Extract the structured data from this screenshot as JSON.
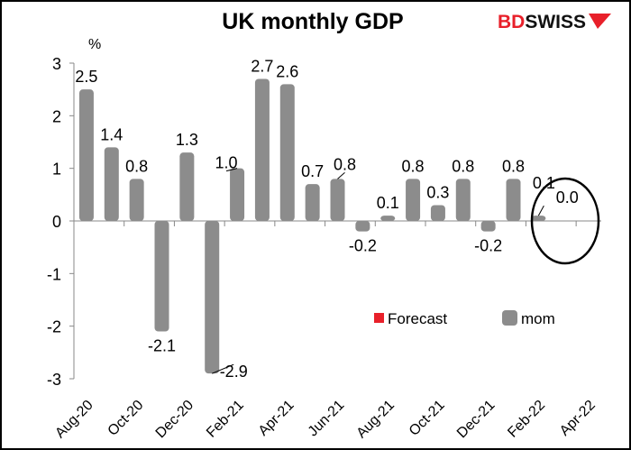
{
  "chart_data": {
    "type": "bar",
    "title": "UK monthly GDP",
    "ylabel": "%",
    "ylim": [
      -3,
      3
    ],
    "yticks": [
      -3,
      -2,
      -1,
      0,
      1,
      2,
      3
    ],
    "categories": [
      "Aug-20",
      "Sep-20",
      "Oct-20",
      "Nov-20",
      "Dec-20",
      "Jan-21",
      "Feb-21",
      "Mar-21",
      "Apr-21",
      "May-21",
      "Jun-21",
      "Jul-21",
      "Aug-21",
      "Sep-21",
      "Oct-21",
      "Nov-21",
      "Dec-21",
      "Jan-22",
      "Feb-22",
      "Mar-22",
      "Apr-22"
    ],
    "xtick_labels": [
      "Aug-20",
      "Oct-20",
      "Dec-20",
      "Feb-21",
      "Apr-21",
      "Jun-21",
      "Aug-21",
      "Oct-21",
      "Dec-21",
      "Feb-22",
      "Apr-22"
    ],
    "series": [
      {
        "name": "mom",
        "color": "#8c8c8c",
        "values": [
          2.5,
          1.4,
          0.8,
          -2.1,
          1.3,
          -2.9,
          1.0,
          2.7,
          2.6,
          0.7,
          0.8,
          -0.2,
          0.1,
          0.8,
          0.3,
          0.8,
          -0.2,
          0.8,
          0.1,
          null,
          null
        ]
      },
      {
        "name": "Forecast",
        "color": "#e8202a",
        "values": [
          null,
          null,
          null,
          null,
          null,
          null,
          null,
          null,
          null,
          null,
          null,
          null,
          null,
          null,
          null,
          null,
          null,
          null,
          null,
          0.0,
          null
        ]
      }
    ],
    "legend_placement": "bottom-right",
    "grid": false,
    "annotation": "ellipse highlighting Mar-22 forecast"
  },
  "logo": {
    "text_red": "BD",
    "text_black": "SWISS",
    "red": "#e8202a"
  }
}
